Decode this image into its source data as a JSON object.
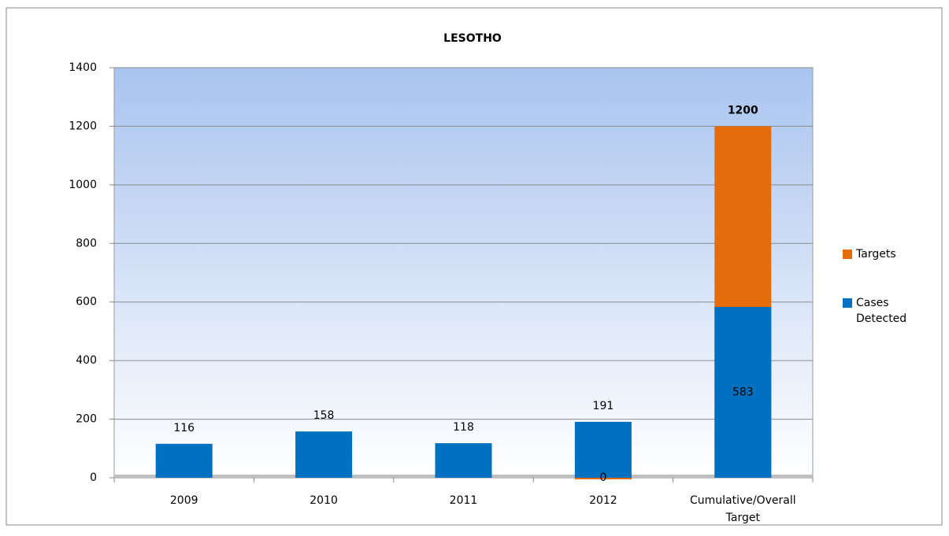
{
  "chart_data": {
    "type": "bar",
    "overlap": true,
    "title": "LESOTHO",
    "categories": [
      "2009",
      "2010",
      "2011",
      "2012",
      "Cumulative/Overall Target"
    ],
    "series": [
      {
        "name": "Cases Detected",
        "color": "#0070c0",
        "values": [
          116,
          158,
          118,
          191,
          583
        ]
      },
      {
        "name": "Targets",
        "color": "#e46c0a",
        "values": [
          null,
          null,
          null,
          0,
          1200
        ]
      }
    ],
    "ylim": [
      0,
      1400
    ],
    "yticks": [
      0,
      200,
      400,
      600,
      800,
      1000,
      1200,
      1400
    ],
    "grid": true,
    "legend": "right"
  }
}
